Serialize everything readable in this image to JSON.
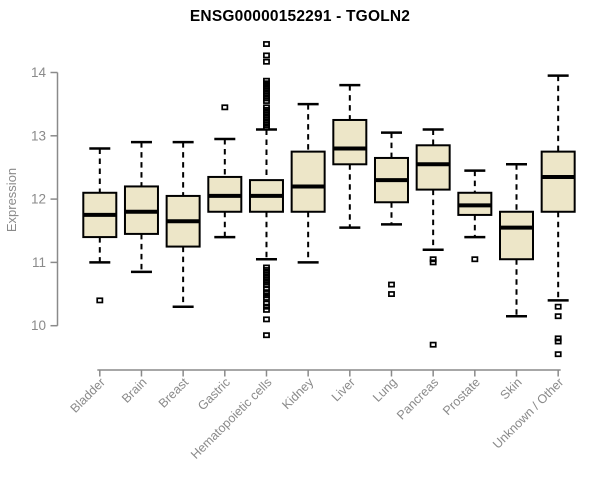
{
  "chart_data": {
    "type": "boxplot",
    "title": "ENSG00000152291 - TGOLN2",
    "ylabel": "Expression",
    "xlabel": "",
    "yticks": [
      10,
      11,
      12,
      13,
      14
    ],
    "ylim": [
      9.4,
      14.6
    ],
    "grid": false,
    "legend": false,
    "categories": [
      "Bladder",
      "Brain",
      "Breast",
      "Gastric",
      "Hematopoietic cells",
      "Kidney",
      "Liver",
      "Lung",
      "Pancreas",
      "Prostate",
      "Skin",
      "Unknown / Other"
    ],
    "series": [
      {
        "category": "Bladder",
        "low": 11.0,
        "q1": 11.4,
        "median": 11.75,
        "q3": 12.1,
        "high": 12.8,
        "outliers": [
          10.4
        ]
      },
      {
        "category": "Brain",
        "low": 10.85,
        "q1": 11.45,
        "median": 11.8,
        "q3": 12.2,
        "high": 12.9,
        "outliers": []
      },
      {
        "category": "Breast",
        "low": 10.3,
        "q1": 11.25,
        "median": 11.65,
        "q3": 12.05,
        "high": 12.9,
        "outliers": []
      },
      {
        "category": "Gastric",
        "low": 11.4,
        "q1": 11.8,
        "median": 12.05,
        "q3": 12.35,
        "high": 12.95,
        "outliers": [
          13.45
        ]
      },
      {
        "category": "Hematopoietic cells",
        "low": 11.05,
        "q1": 11.8,
        "median": 12.05,
        "q3": 12.3,
        "high": 13.1,
        "outliers": [
          14.45,
          14.27,
          14.17,
          13.87,
          13.83,
          13.79,
          13.75,
          13.71,
          13.67,
          13.63,
          13.59,
          13.55,
          13.45,
          13.41,
          13.37,
          13.33,
          13.29,
          13.25,
          13.21,
          13.17,
          13.13,
          10.92,
          10.88,
          10.84,
          10.8,
          10.76,
          10.72,
          10.68,
          10.64,
          10.58,
          10.53,
          10.48,
          10.44,
          10.35,
          10.3,
          10.25,
          10.1,
          9.85
        ]
      },
      {
        "category": "Kidney",
        "low": 11.0,
        "q1": 11.8,
        "median": 12.2,
        "q3": 12.75,
        "high": 13.5,
        "outliers": []
      },
      {
        "category": "Liver",
        "low": 11.55,
        "q1": 12.55,
        "median": 12.8,
        "q3": 13.25,
        "high": 13.8,
        "outliers": []
      },
      {
        "category": "Lung",
        "low": 11.6,
        "q1": 11.95,
        "median": 12.3,
        "q3": 12.65,
        "high": 13.05,
        "outliers": [
          10.65,
          10.5
        ]
      },
      {
        "category": "Pancreas",
        "low": 11.2,
        "q1": 12.15,
        "median": 12.55,
        "q3": 12.85,
        "high": 13.1,
        "outliers": [
          11.05,
          11.0,
          9.7
        ]
      },
      {
        "category": "Prostate",
        "low": 11.4,
        "q1": 11.75,
        "median": 11.9,
        "q3": 12.1,
        "high": 12.45,
        "outliers": [
          11.05
        ]
      },
      {
        "category": "Skin",
        "low": 10.15,
        "q1": 11.05,
        "median": 11.55,
        "q3": 11.8,
        "high": 12.55,
        "outliers": []
      },
      {
        "category": "Unknown / Other",
        "low": 10.4,
        "q1": 11.8,
        "median": 12.35,
        "q3": 12.75,
        "high": 13.95,
        "outliers": [
          10.3,
          10.15,
          9.8,
          9.75,
          9.55
        ]
      }
    ],
    "colors": {
      "box_fill": "#EDE6C8",
      "box_stroke": "#000000",
      "median": "#000000",
      "whisker": "#000000",
      "outlier": "#000000",
      "axis": "#8a8a8a",
      "tick_label": "#8a8a8a",
      "title": "#000000",
      "background": "#ffffff"
    }
  }
}
